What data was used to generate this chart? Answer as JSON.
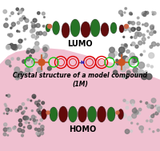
{
  "lumo_label": "LUMO",
  "homo_label": "HOMO",
  "crystal_label": "Crystal structure of a model compound\n(1M)",
  "lumo_label_fontsize": 7,
  "homo_label_fontsize": 7,
  "crystal_label_fontsize": 5.5,
  "bg_color": "#ffffff",
  "pink_color": "#f0c0d0",
  "fig_width": 2.01,
  "fig_height": 1.89,
  "dpi": 100
}
